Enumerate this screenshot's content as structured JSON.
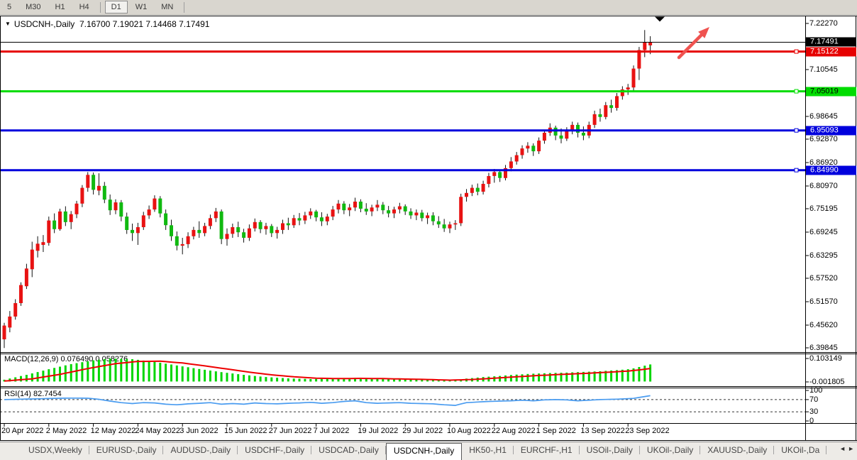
{
  "toolbar": {
    "timeframes": [
      "5",
      "M30",
      "H1",
      "H4",
      "D1",
      "W1",
      "MN"
    ],
    "active_index": 4,
    "separators_after": [
      3,
      6
    ]
  },
  "chart_header": {
    "symbol_label": "USDCNH-,Daily",
    "ohlc_text": "7.16700 7.19021 7.14468 7.17491"
  },
  "icons": {
    "symbol_dropdown": "▼",
    "tab_scroll_left": "◄",
    "tab_scroll_right": "►"
  },
  "price_axis": {
    "ticks": [
      "7.22270",
      "7.10545",
      "6.98645",
      "6.92870",
      "6.86920",
      "6.80970",
      "6.75195",
      "6.69245",
      "6.63295",
      "6.57520",
      "6.51570",
      "6.45620",
      "6.39845"
    ],
    "badges": [
      {
        "label": "7.17491",
        "bg": "#000000",
        "fg": "#ffffff"
      },
      {
        "label": "7.15122",
        "bg": "#e60000",
        "fg": "#ffffff"
      },
      {
        "label": "7.05019",
        "bg": "#00dc00",
        "fg": "#000000"
      },
      {
        "label": "6.95093",
        "bg": "#0000dd",
        "fg": "#ffffff"
      },
      {
        "label": "6.84990",
        "bg": "#0000dd",
        "fg": "#ffffff"
      }
    ]
  },
  "indicators": {
    "macd_label": "MACD(12,26,9) 0.076490 0.058276",
    "macd_axis": [
      "0.103149",
      "-0.001805"
    ],
    "rsi_label": "RSI(14) 82.7454",
    "rsi_axis": [
      "100",
      "70",
      "30",
      "0"
    ]
  },
  "tabs": {
    "items": [
      "USDX,Weekly",
      "EURUSD-,Daily",
      "AUDUSD-,Daily",
      "USDCHF-,Daily",
      "USDCAD-,Daily",
      "USDCNH-,Daily",
      "HK50-,H1",
      "EURCHF-,H1",
      "USOil-,Daily",
      "UKOil-,Daily",
      "XAUUSD-,Daily",
      "UKOil-,Da"
    ],
    "active_index": 5
  },
  "chart_data": {
    "type": "candlestick",
    "symbol": "USDCNH-",
    "timeframe": "Daily",
    "last_ohlc": {
      "open": 7.167,
      "high": 7.19021,
      "low": 7.14468,
      "close": 7.17491
    },
    "ylim": [
      6.39845,
      7.2227
    ],
    "bars_per_date_tick": 8,
    "x_tick_labels": [
      "20 Apr 2022",
      "2 May 2022",
      "12 May 2022",
      "24 May 2022",
      "3 Jun 2022",
      "15 Jun 2022",
      "27 Jun 2022",
      "7 Jul 2022",
      "19 Jul 2022",
      "29 Jul 2022",
      "10 Aug 2022",
      "22 Aug 2022",
      "1 Sep 2022",
      "13 Sep 2022",
      "23 Sep 2022"
    ],
    "candles": [
      [
        6.42,
        6.462,
        6.398,
        6.455
      ],
      [
        6.45,
        6.492,
        6.438,
        6.478
      ],
      [
        6.478,
        6.522,
        6.47,
        6.512
      ],
      [
        6.512,
        6.565,
        6.505,
        6.558
      ],
      [
        6.555,
        6.612,
        6.548,
        6.6
      ],
      [
        6.598,
        6.668,
        6.578,
        6.648
      ],
      [
        6.645,
        6.682,
        6.628,
        6.663
      ],
      [
        6.66,
        6.685,
        6.642,
        6.667
      ],
      [
        6.665,
        6.732,
        6.658,
        6.722
      ],
      [
        6.722,
        6.74,
        6.69,
        6.7
      ],
      [
        6.7,
        6.752,
        6.696,
        6.745
      ],
      [
        6.745,
        6.758,
        6.708,
        6.718
      ],
      [
        6.718,
        6.746,
        6.7,
        6.738
      ],
      [
        6.738,
        6.772,
        6.728,
        6.765
      ],
      [
        6.765,
        6.812,
        6.756,
        6.805
      ],
      [
        6.805,
        6.845,
        6.795,
        6.838
      ],
      [
        6.838,
        6.844,
        6.788,
        6.8
      ],
      [
        6.798,
        6.842,
        6.786,
        6.81
      ],
      [
        6.81,
        6.82,
        6.766,
        6.775
      ],
      [
        6.775,
        6.788,
        6.736,
        6.748
      ],
      [
        6.748,
        6.776,
        6.738,
        6.768
      ],
      [
        6.768,
        6.774,
        6.72,
        6.732
      ],
      [
        6.732,
        6.742,
        6.688,
        6.698
      ],
      [
        6.698,
        6.714,
        6.67,
        6.69
      ],
      [
        6.69,
        6.716,
        6.66,
        6.705
      ],
      [
        6.705,
        6.744,
        6.698,
        6.735
      ],
      [
        6.735,
        6.76,
        6.726,
        6.75
      ],
      [
        6.75,
        6.786,
        6.744,
        6.778
      ],
      [
        6.778,
        6.784,
        6.73,
        6.74
      ],
      [
        6.74,
        6.75,
        6.698,
        6.71
      ],
      [
        6.71,
        6.724,
        6.67,
        6.682
      ],
      [
        6.682,
        6.694,
        6.646,
        6.658
      ],
      [
        6.658,
        6.678,
        6.636,
        6.662
      ],
      [
        6.662,
        6.692,
        6.652,
        6.682
      ],
      [
        6.682,
        6.706,
        6.674,
        6.698
      ],
      [
        6.698,
        6.72,
        6.678,
        6.69
      ],
      [
        6.69,
        6.716,
        6.682,
        6.708
      ],
      [
        6.708,
        6.737,
        6.7,
        6.728
      ],
      [
        6.728,
        6.754,
        6.718,
        6.745
      ],
      [
        6.745,
        6.75,
        6.662,
        6.675
      ],
      [
        6.675,
        6.702,
        6.658,
        6.688
      ],
      [
        6.688,
        6.714,
        6.678,
        6.705
      ],
      [
        6.705,
        6.719,
        6.68,
        6.692
      ],
      [
        6.692,
        6.701,
        6.666,
        6.678
      ],
      [
        6.678,
        6.712,
        6.67,
        6.702
      ],
      [
        6.702,
        6.727,
        6.694,
        6.718
      ],
      [
        6.718,
        6.723,
        6.69,
        6.7
      ],
      [
        6.7,
        6.716,
        6.686,
        6.708
      ],
      [
        6.708,
        6.713,
        6.68,
        6.69
      ],
      [
        6.69,
        6.706,
        6.676,
        6.698
      ],
      [
        6.698,
        6.724,
        6.688,
        6.715
      ],
      [
        6.715,
        6.729,
        6.698,
        6.71
      ],
      [
        6.71,
        6.736,
        6.703,
        6.728
      ],
      [
        6.728,
        6.741,
        6.71,
        6.722
      ],
      [
        6.722,
        6.744,
        6.713,
        6.735
      ],
      [
        6.735,
        6.753,
        6.726,
        6.745
      ],
      [
        6.745,
        6.749,
        6.72,
        6.73
      ],
      [
        6.73,
        6.743,
        6.708,
        6.72
      ],
      [
        6.72,
        6.739,
        6.71,
        6.732
      ],
      [
        6.732,
        6.759,
        6.723,
        6.75
      ],
      [
        6.75,
        6.774,
        6.74,
        6.765
      ],
      [
        6.765,
        6.771,
        6.738,
        6.748
      ],
      [
        6.748,
        6.764,
        6.733,
        6.755
      ],
      [
        6.755,
        6.78,
        6.746,
        6.77
      ],
      [
        6.77,
        6.776,
        6.743,
        6.752
      ],
      [
        6.752,
        6.766,
        6.736,
        6.745
      ],
      [
        6.745,
        6.762,
        6.733,
        6.755
      ],
      [
        6.755,
        6.774,
        6.746,
        6.762
      ],
      [
        6.762,
        6.769,
        6.738,
        6.748
      ],
      [
        6.748,
        6.759,
        6.73,
        6.74
      ],
      [
        6.74,
        6.757,
        6.728,
        6.75
      ],
      [
        6.75,
        6.767,
        6.74,
        6.758
      ],
      [
        6.758,
        6.763,
        6.736,
        6.745
      ],
      [
        6.745,
        6.753,
        6.726,
        6.735
      ],
      [
        6.735,
        6.75,
        6.723,
        6.742
      ],
      [
        6.742,
        6.749,
        6.72,
        6.728
      ],
      [
        6.728,
        6.742,
        6.713,
        6.735
      ],
      [
        6.735,
        6.743,
        6.71,
        6.72
      ],
      [
        6.72,
        6.733,
        6.703,
        6.712
      ],
      [
        6.712,
        6.726,
        6.693,
        6.702
      ],
      [
        6.702,
        6.719,
        6.69,
        6.712
      ],
      [
        6.712,
        6.723,
        6.698,
        6.715
      ],
      [
        6.715,
        6.79,
        6.708,
        6.782
      ],
      [
        6.782,
        6.802,
        6.77,
        6.792
      ],
      [
        6.792,
        6.813,
        6.784,
        6.805
      ],
      [
        6.805,
        6.816,
        6.786,
        6.795
      ],
      [
        6.795,
        6.823,
        6.788,
        6.815
      ],
      [
        6.815,
        6.843,
        6.806,
        6.835
      ],
      [
        6.835,
        6.853,
        6.818,
        6.845
      ],
      [
        6.845,
        6.851,
        6.82,
        6.83
      ],
      [
        6.83,
        6.863,
        6.824,
        6.855
      ],
      [
        6.855,
        6.883,
        6.847,
        6.872
      ],
      [
        6.872,
        6.896,
        6.864,
        6.888
      ],
      [
        6.888,
        6.913,
        6.879,
        6.905
      ],
      [
        6.905,
        6.921,
        6.894,
        6.912
      ],
      [
        6.912,
        6.918,
        6.886,
        6.898
      ],
      [
        6.898,
        6.933,
        6.891,
        6.925
      ],
      [
        6.925,
        6.953,
        6.917,
        6.945
      ],
      [
        6.945,
        6.969,
        6.937,
        6.958
      ],
      [
        6.958,
        6.963,
        6.926,
        6.938
      ],
      [
        6.938,
        6.956,
        6.918,
        6.93
      ],
      [
        6.93,
        6.959,
        6.924,
        6.95
      ],
      [
        6.95,
        6.973,
        6.941,
        6.965
      ],
      [
        6.965,
        6.971,
        6.933,
        6.945
      ],
      [
        6.945,
        6.961,
        6.926,
        6.938
      ],
      [
        6.938,
        6.973,
        6.931,
        6.965
      ],
      [
        6.965,
        7.001,
        6.957,
        6.992
      ],
      [
        6.992,
        7.006,
        6.973,
        6.985
      ],
      [
        6.985,
        7.023,
        6.979,
        7.015
      ],
      [
        7.015,
        7.029,
        6.996,
        7.008
      ],
      [
        7.008,
        7.046,
        7.001,
        7.038
      ],
      [
        7.038,
        7.063,
        7.029,
        7.055
      ],
      [
        7.055,
        7.069,
        7.041,
        7.06
      ],
      [
        7.06,
        7.116,
        7.051,
        7.108
      ],
      [
        7.108,
        7.163,
        7.079,
        7.155
      ],
      [
        7.155,
        7.206,
        7.137,
        7.175
      ],
      [
        7.167,
        7.19021,
        7.14468,
        7.17491
      ]
    ],
    "hlines": [
      {
        "name": "current-price-line",
        "value": 7.17491,
        "color": "#000000",
        "width": 1
      },
      {
        "name": "resistance-line",
        "value": 7.15122,
        "color": "#e60000",
        "width": 3
      },
      {
        "name": "level-line-green",
        "value": 7.05019,
        "color": "#00dc00",
        "width": 3
      },
      {
        "name": "level-line-blue-upper",
        "value": 6.95093,
        "color": "#0000dd",
        "width": 3
      },
      {
        "name": "level-line-blue-lower",
        "value": 6.8499,
        "color": "#0000dd",
        "width": 3
      }
    ],
    "macd": {
      "params": "12,26,9",
      "value": 0.07649,
      "signal_value": 0.058276,
      "range": [
        -0.001805,
        0.103149
      ],
      "hist_keyframes": [
        [
          0,
          0.008
        ],
        [
          4,
          0.03
        ],
        [
          8,
          0.055
        ],
        [
          12,
          0.078
        ],
        [
          16,
          0.095
        ],
        [
          19,
          0.103
        ],
        [
          23,
          0.1
        ],
        [
          27,
          0.088
        ],
        [
          31,
          0.072
        ],
        [
          35,
          0.056
        ],
        [
          39,
          0.042
        ],
        [
          43,
          0.03
        ],
        [
          47,
          0.02
        ],
        [
          51,
          0.014
        ],
        [
          55,
          0.011
        ],
        [
          59,
          0.013
        ],
        [
          63,
          0.016
        ],
        [
          67,
          0.013
        ],
        [
          71,
          0.01
        ],
        [
          75,
          0.007
        ],
        [
          79,
          0.005
        ],
        [
          81,
          0.007
        ],
        [
          83,
          0.013
        ],
        [
          86,
          0.02
        ],
        [
          89,
          0.025
        ],
        [
          92,
          0.031
        ],
        [
          95,
          0.035
        ],
        [
          98,
          0.038
        ],
        [
          101,
          0.04
        ],
        [
          104,
          0.043
        ],
        [
          107,
          0.046
        ],
        [
          110,
          0.051
        ],
        [
          112,
          0.055
        ],
        [
          113,
          0.059
        ],
        [
          114,
          0.065
        ],
        [
          115,
          0.071
        ],
        [
          116,
          0.0765
        ]
      ],
      "signal_keyframes": [
        [
          0,
          0.002
        ],
        [
          5,
          0.012
        ],
        [
          10,
          0.032
        ],
        [
          15,
          0.058
        ],
        [
          20,
          0.08
        ],
        [
          24,
          0.09
        ],
        [
          28,
          0.091
        ],
        [
          32,
          0.083
        ],
        [
          36,
          0.07
        ],
        [
          40,
          0.056
        ],
        [
          44,
          0.042
        ],
        [
          48,
          0.03
        ],
        [
          52,
          0.021
        ],
        [
          56,
          0.015
        ],
        [
          60,
          0.013
        ],
        [
          64,
          0.014
        ],
        [
          68,
          0.013
        ],
        [
          72,
          0.011
        ],
        [
          76,
          0.009
        ],
        [
          80,
          0.006
        ],
        [
          84,
          0.009
        ],
        [
          88,
          0.015
        ],
        [
          92,
          0.021
        ],
        [
          96,
          0.027
        ],
        [
          100,
          0.032
        ],
        [
          104,
          0.036
        ],
        [
          108,
          0.041
        ],
        [
          112,
          0.047
        ],
        [
          114,
          0.052
        ],
        [
          116,
          0.0583
        ]
      ]
    },
    "rsi": {
      "period": 14,
      "value": 82.7454,
      "range": [
        0,
        100
      ],
      "levels": [
        70,
        30
      ],
      "keyframes": [
        [
          0,
          70
        ],
        [
          3,
          71.5
        ],
        [
          6,
          72.5
        ],
        [
          9,
          74
        ],
        [
          12,
          75
        ],
        [
          15,
          74.5
        ],
        [
          17,
          71
        ],
        [
          19,
          65
        ],
        [
          21,
          60
        ],
        [
          23,
          57
        ],
        [
          25,
          60
        ],
        [
          27,
          59
        ],
        [
          29,
          55
        ],
        [
          31,
          53
        ],
        [
          33,
          56
        ],
        [
          35,
          58
        ],
        [
          37,
          60
        ],
        [
          39,
          55
        ],
        [
          41,
          57
        ],
        [
          43,
          55
        ],
        [
          45,
          59
        ],
        [
          47,
          57
        ],
        [
          49,
          56
        ],
        [
          51,
          58
        ],
        [
          53,
          59
        ],
        [
          55,
          61
        ],
        [
          57,
          58
        ],
        [
          59,
          60
        ],
        [
          61,
          64
        ],
        [
          63,
          66
        ],
        [
          65,
          60
        ],
        [
          67,
          58
        ],
        [
          69,
          59
        ],
        [
          71,
          60
        ],
        [
          73,
          58
        ],
        [
          75,
          57
        ],
        [
          77,
          56
        ],
        [
          79,
          53
        ],
        [
          81,
          51
        ],
        [
          83,
          60
        ],
        [
          85,
          62
        ],
        [
          87,
          64
        ],
        [
          89,
          65
        ],
        [
          91,
          66
        ],
        [
          93,
          68
        ],
        [
          95,
          66
        ],
        [
          97,
          69
        ],
        [
          99,
          70
        ],
        [
          101,
          69
        ],
        [
          103,
          66
        ],
        [
          105,
          68
        ],
        [
          107,
          70
        ],
        [
          109,
          71
        ],
        [
          111,
          72
        ],
        [
          113,
          74
        ],
        [
          114,
          77
        ],
        [
          115,
          80
        ],
        [
          116,
          82.75
        ]
      ]
    },
    "colors": {
      "up": "#e81212",
      "down": "#10b910",
      "wick": "#111111",
      "macd_hist": "#00d600",
      "macd_signal": "#ee0000",
      "rsi_line": "#4a9cf0",
      "arrow": "#ef5350",
      "marker": "#000000"
    },
    "annotations": [
      {
        "type": "up-trend-arrow",
        "color": "#ef5350"
      },
      {
        "type": "down-triangle-marker",
        "color": "#000000"
      }
    ]
  }
}
